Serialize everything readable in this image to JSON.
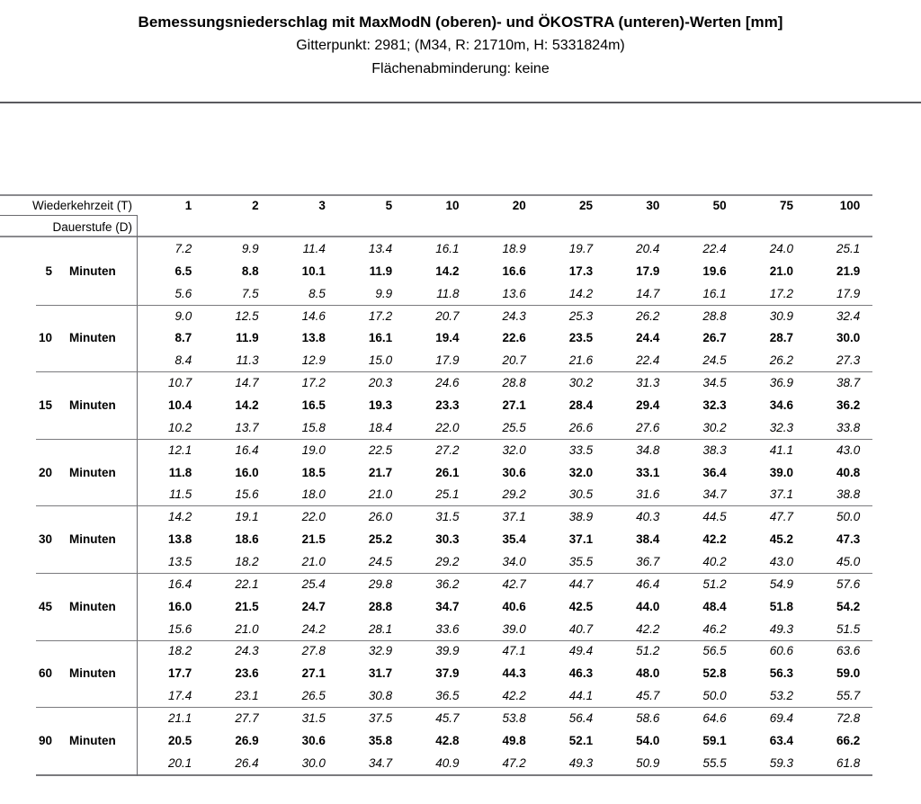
{
  "header": {
    "title": "Bemessungsniederschlag mit MaxModN (oberen)- und ÖKOSTRA (unteren)-Werten [mm]",
    "subtitle1": "Gitterpunkt: 2981; (M34, R: 21710m, H: 5331824m)",
    "subtitle2": "Flächenabminderung: keine"
  },
  "table": {
    "corner_label": "Wiederkehrzeit (T)",
    "row_axis_label": "Dauerstufe (D)",
    "columns": [
      "1",
      "2",
      "3",
      "5",
      "10",
      "20",
      "25",
      "30",
      "50",
      "75",
      "100"
    ],
    "groups": [
      {
        "duration": "5",
        "unit": "Minuten",
        "upper": [
          "7.2",
          "9.9",
          "11.4",
          "13.4",
          "16.1",
          "18.9",
          "19.7",
          "20.4",
          "22.4",
          "24.0",
          "25.1"
        ],
        "middle": [
          "6.5",
          "8.8",
          "10.1",
          "11.9",
          "14.2",
          "16.6",
          "17.3",
          "17.9",
          "19.6",
          "21.0",
          "21.9"
        ],
        "lower": [
          "5.6",
          "7.5",
          "8.5",
          "9.9",
          "11.8",
          "13.6",
          "14.2",
          "14.7",
          "16.1",
          "17.2",
          "17.9"
        ]
      },
      {
        "duration": "10",
        "unit": "Minuten",
        "upper": [
          "9.0",
          "12.5",
          "14.6",
          "17.2",
          "20.7",
          "24.3",
          "25.3",
          "26.2",
          "28.8",
          "30.9",
          "32.4"
        ],
        "middle": [
          "8.7",
          "11.9",
          "13.8",
          "16.1",
          "19.4",
          "22.6",
          "23.5",
          "24.4",
          "26.7",
          "28.7",
          "30.0"
        ],
        "lower": [
          "8.4",
          "11.3",
          "12.9",
          "15.0",
          "17.9",
          "20.7",
          "21.6",
          "22.4",
          "24.5",
          "26.2",
          "27.3"
        ]
      },
      {
        "duration": "15",
        "unit": "Minuten",
        "upper": [
          "10.7",
          "14.7",
          "17.2",
          "20.3",
          "24.6",
          "28.8",
          "30.2",
          "31.3",
          "34.5",
          "36.9",
          "38.7"
        ],
        "middle": [
          "10.4",
          "14.2",
          "16.5",
          "19.3",
          "23.3",
          "27.1",
          "28.4",
          "29.4",
          "32.3",
          "34.6",
          "36.2"
        ],
        "lower": [
          "10.2",
          "13.7",
          "15.8",
          "18.4",
          "22.0",
          "25.5",
          "26.6",
          "27.6",
          "30.2",
          "32.3",
          "33.8"
        ]
      },
      {
        "duration": "20",
        "unit": "Minuten",
        "upper": [
          "12.1",
          "16.4",
          "19.0",
          "22.5",
          "27.2",
          "32.0",
          "33.5",
          "34.8",
          "38.3",
          "41.1",
          "43.0"
        ],
        "middle": [
          "11.8",
          "16.0",
          "18.5",
          "21.7",
          "26.1",
          "30.6",
          "32.0",
          "33.1",
          "36.4",
          "39.0",
          "40.8"
        ],
        "lower": [
          "11.5",
          "15.6",
          "18.0",
          "21.0",
          "25.1",
          "29.2",
          "30.5",
          "31.6",
          "34.7",
          "37.1",
          "38.8"
        ]
      },
      {
        "duration": "30",
        "unit": "Minuten",
        "upper": [
          "14.2",
          "19.1",
          "22.0",
          "26.0",
          "31.5",
          "37.1",
          "38.9",
          "40.3",
          "44.5",
          "47.7",
          "50.0"
        ],
        "middle": [
          "13.8",
          "18.6",
          "21.5",
          "25.2",
          "30.3",
          "35.4",
          "37.1",
          "38.4",
          "42.2",
          "45.2",
          "47.3"
        ],
        "lower": [
          "13.5",
          "18.2",
          "21.0",
          "24.5",
          "29.2",
          "34.0",
          "35.5",
          "36.7",
          "40.2",
          "43.0",
          "45.0"
        ]
      },
      {
        "duration": "45",
        "unit": "Minuten",
        "upper": [
          "16.4",
          "22.1",
          "25.4",
          "29.8",
          "36.2",
          "42.7",
          "44.7",
          "46.4",
          "51.2",
          "54.9",
          "57.6"
        ],
        "middle": [
          "16.0",
          "21.5",
          "24.7",
          "28.8",
          "34.7",
          "40.6",
          "42.5",
          "44.0",
          "48.4",
          "51.8",
          "54.2"
        ],
        "lower": [
          "15.6",
          "21.0",
          "24.2",
          "28.1",
          "33.6",
          "39.0",
          "40.7",
          "42.2",
          "46.2",
          "49.3",
          "51.5"
        ]
      },
      {
        "duration": "60",
        "unit": "Minuten",
        "upper": [
          "18.2",
          "24.3",
          "27.8",
          "32.9",
          "39.9",
          "47.1",
          "49.4",
          "51.2",
          "56.5",
          "60.6",
          "63.6"
        ],
        "middle": [
          "17.7",
          "23.6",
          "27.1",
          "31.7",
          "37.9",
          "44.3",
          "46.3",
          "48.0",
          "52.8",
          "56.3",
          "59.0"
        ],
        "lower": [
          "17.4",
          "23.1",
          "26.5",
          "30.8",
          "36.5",
          "42.2",
          "44.1",
          "45.7",
          "50.0",
          "53.2",
          "55.7"
        ]
      },
      {
        "duration": "90",
        "unit": "Minuten",
        "upper": [
          "21.1",
          "27.7",
          "31.5",
          "37.5",
          "45.7",
          "53.8",
          "56.4",
          "58.6",
          "64.6",
          "69.4",
          "72.8"
        ],
        "middle": [
          "20.5",
          "26.9",
          "30.6",
          "35.8",
          "42.8",
          "49.8",
          "52.1",
          "54.0",
          "59.1",
          "63.4",
          "66.2"
        ],
        "lower": [
          "20.1",
          "26.4",
          "30.0",
          "34.7",
          "40.9",
          "47.2",
          "49.3",
          "50.9",
          "55.5",
          "59.3",
          "61.8"
        ]
      }
    ]
  }
}
